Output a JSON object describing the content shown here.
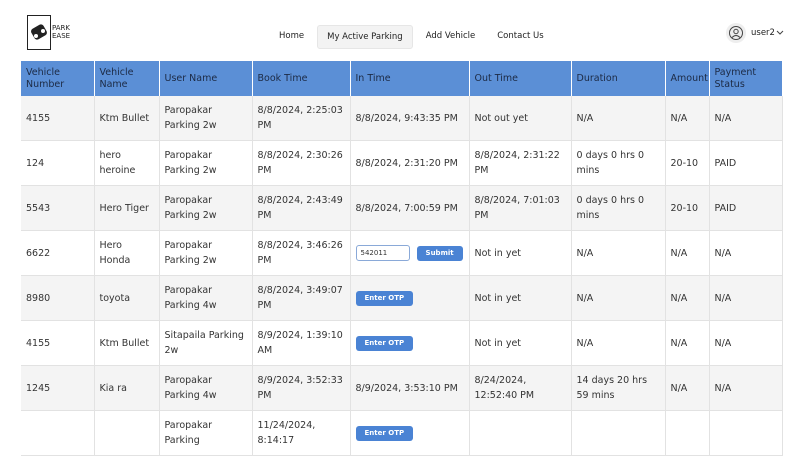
{
  "header": {
    "logo": [
      "PARK",
      "EASE"
    ],
    "nav": [
      "Home",
      "My Active Parking",
      "Add Vehicle",
      "Contact Us"
    ],
    "active_nav": 1,
    "user": "user2"
  },
  "table": {
    "columns": [
      "Vehicle Number",
      "Vehicle Name",
      "User Name",
      "Book Time",
      "In Time",
      "Out Time",
      "Duration",
      "Amount",
      "Payment Status"
    ],
    "rows": [
      [
        "4155",
        "Ktm Bullet",
        "Paropakar Parking 2w",
        "8/8/2024, 2:25:03 PM",
        "8/8/2024, 9:43:35 PM",
        "Not out yet",
        "N/A",
        "N/A",
        "N/A"
      ],
      [
        "124",
        "hero heroine",
        "Paropakar Parking 2w",
        "8/8/2024, 2:30:26 PM",
        "8/8/2024, 2:31:20 PM",
        "8/8/2024, 2:31:22 PM",
        "0 days 0 hrs 0 mins",
        "20-10",
        "PAID"
      ],
      [
        "5543",
        "Hero Tiger",
        "Paropakar Parking 2w",
        "8/8/2024, 2:43:49 PM",
        "8/8/2024, 7:00:59 PM",
        "8/8/2024, 7:01:03 PM",
        "0 days 0 hrs 0 mins",
        "20-10",
        "PAID"
      ],
      [
        "6622",
        "Hero Honda",
        "Paropakar Parking 2w",
        "8/8/2024, 3:46:26 PM",
        {
          "input": "542011",
          "button": "Submit"
        },
        "Not in yet",
        "N/A",
        "N/A",
        "N/A"
      ],
      [
        "8980",
        "toyota",
        "Paropakar Parking 4w",
        "8/8/2024, 3:49:07 PM",
        {
          "button": "Enter OTP"
        },
        "Not in yet",
        "N/A",
        "N/A",
        "N/A"
      ],
      [
        "4155",
        "Ktm Bullet",
        "Sitapaila Parking 2w",
        "8/9/2024, 1:39:10 AM",
        {
          "button": "Enter OTP"
        },
        "Not in yet",
        "N/A",
        "N/A",
        "N/A"
      ],
      [
        "1245",
        "Kia ra",
        "Paropakar Parking 4w",
        "8/9/2024, 3:52:33 PM",
        "8/9/2024, 3:53:10 PM",
        "8/24/2024, 12:52:40 PM",
        "14 days 20 hrs 59 mins",
        "N/A",
        "N/A"
      ],
      [
        "",
        "",
        "Paropakar Parking",
        "11/24/2024, 8:14:17",
        {
          "button": "Enter OTP"
        },
        "",
        "",
        "",
        ""
      ]
    ]
  }
}
